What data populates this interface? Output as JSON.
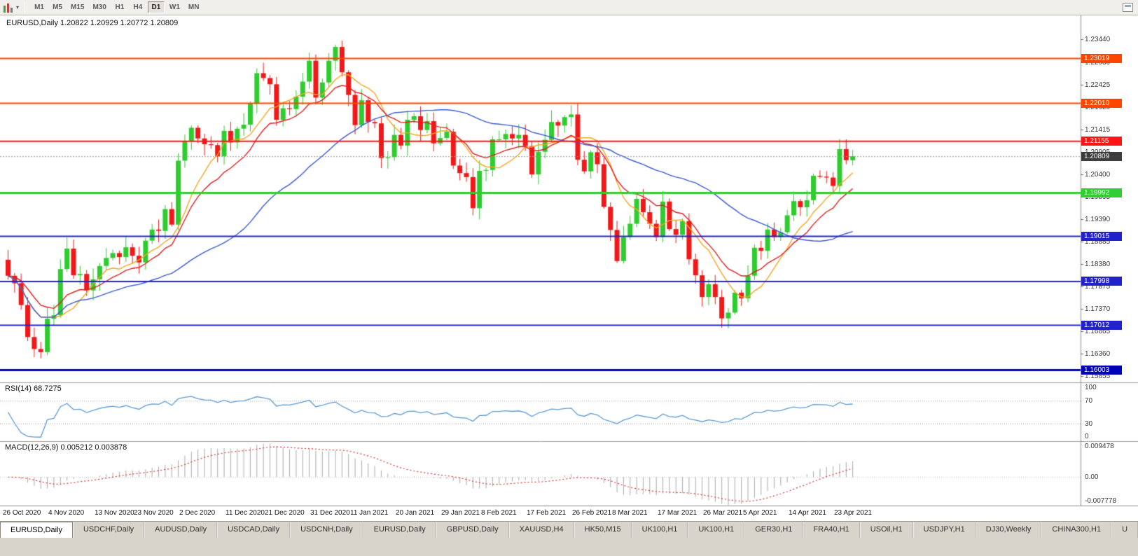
{
  "toolbar": {
    "timeframes": [
      "M1",
      "M5",
      "M15",
      "M30",
      "H1",
      "H4",
      "D1",
      "W1",
      "MN"
    ],
    "active_timeframe": "D1",
    "icons": [
      "candlestick-chart-icon",
      "chevron-down-icon",
      "restore-window-icon"
    ]
  },
  "tabs": {
    "active_index": 0,
    "items": [
      "EURUSD,Daily",
      "USDCHF,Daily",
      "AUDUSD,Daily",
      "USDCAD,Daily",
      "USDCNH,Daily",
      "EURUSD,Daily",
      "GBPUSD,Daily",
      "XAUUSD,H4",
      "HK50,M15",
      "UK100,H1",
      "UK100,H1",
      "GER30,H1",
      "FRA40,H1",
      "USOil,H1",
      "USDJPY,H1",
      "DJ30,Weekly",
      "CHINA300,H1",
      "U"
    ]
  },
  "chart_data": [
    {
      "type": "candlestick",
      "symbol": "EURUSD",
      "period": "Daily",
      "ohlc_line": "EURUSD,Daily 1.20822 1.20929 1.20772 1.20809",
      "current_ohlc": {
        "open": "1.20822",
        "high": "1.20929",
        "low": "1.20772",
        "close": "1.20809"
      },
      "up_color": "#2ecc2e",
      "down_color": "#f01818",
      "y_range": [
        1.1572,
        1.2398
      ],
      "first_open": 1.1848,
      "closes": [
        1.1812,
        1.1795,
        1.1746,
        1.1674,
        1.1647,
        1.164,
        1.1715,
        1.1723,
        1.1827,
        1.1873,
        1.1813,
        1.1816,
        1.1779,
        1.1804,
        1.1834,
        1.1852,
        1.1863,
        1.1854,
        1.1876,
        1.1857,
        1.1842,
        1.1891,
        1.1916,
        1.1913,
        1.1962,
        1.1927,
        1.2071,
        1.2115,
        1.2145,
        1.2121,
        1.2108,
        1.2106,
        1.2081,
        1.2138,
        1.2112,
        1.2143,
        1.2152,
        1.2199,
        1.2268,
        1.2257,
        1.2243,
        1.2163,
        1.2189,
        1.2187,
        1.2215,
        1.2249,
        1.2296,
        1.2213,
        1.2247,
        1.2296,
        1.2327,
        1.227,
        1.2219,
        1.2151,
        1.2207,
        1.2158,
        1.2155,
        1.2077,
        1.2079,
        1.2129,
        1.2105,
        1.2163,
        1.2171,
        1.214,
        1.216,
        1.211,
        1.2122,
        1.2136,
        1.206,
        1.2043,
        1.2034,
        1.1964,
        1.2048,
        1.205,
        1.2119,
        1.2119,
        1.2131,
        1.2121,
        1.2129,
        1.2104,
        1.204,
        1.2091,
        1.2118,
        1.2158,
        1.215,
        1.2169,
        1.2175,
        1.2073,
        1.2047,
        1.209,
        1.2063,
        1.1967,
        1.1915,
        1.1845,
        1.1899,
        1.1929,
        1.1985,
        1.1955,
        1.1929,
        1.1899,
        1.1979,
        1.1917,
        1.1904,
        1.1935,
        1.1849,
        1.1813,
        1.1764,
        1.1793,
        1.1764,
        1.1716,
        1.1729,
        1.1774,
        1.1761,
        1.1812,
        1.1875,
        1.1868,
        1.1916,
        1.1899,
        1.191,
        1.1948,
        1.198,
        1.1966,
        1.1982,
        1.2037,
        1.2035,
        1.2033,
        1.2014,
        1.2097,
        1.2072,
        1.20809
      ],
      "date_labels": [
        {
          "t": "26 Oct 2020",
          "i": 0
        },
        {
          "t": "4 Nov 2020",
          "i": 7
        },
        {
          "t": "13 Nov 2020",
          "i": 14
        },
        {
          "t": "23 Nov 2020",
          "i": 20
        },
        {
          "t": "2 Dec 2020",
          "i": 27
        },
        {
          "t": "11 Dec 2020",
          "i": 34
        },
        {
          "t": "21 Dec 2020",
          "i": 40
        },
        {
          "t": "31 Dec 2020",
          "i": 47
        },
        {
          "t": "11 Jan 2021",
          "i": 53
        },
        {
          "t": "20 Jan 2021",
          "i": 60
        },
        {
          "t": "29 Jan 2021",
          "i": 67
        },
        {
          "t": "8 Feb 2021",
          "i": 73
        },
        {
          "t": "17 Feb 2021",
          "i": 80
        },
        {
          "t": "26 Feb 2021",
          "i": 87
        },
        {
          "t": "8 Mar 2021",
          "i": 93
        },
        {
          "t": "17 Mar 2021",
          "i": 100
        },
        {
          "t": "26 Mar 2021",
          "i": 107
        },
        {
          "t": "5 Apr 2021",
          "i": 113
        },
        {
          "t": "14 Apr 2021",
          "i": 120
        },
        {
          "t": "23 Apr 2021",
          "i": 127
        }
      ],
      "axis_ticks": [
        "1.23440",
        "1.22930",
        "1.22425",
        "1.21920",
        "1.21415",
        "1.20905",
        "1.20400",
        "1.19895",
        "1.19390",
        "1.18885",
        "1.18380",
        "1.17875",
        "1.17370",
        "1.16865",
        "1.16360",
        "1.15855"
      ],
      "levels": [
        {
          "label": "1.23019",
          "value": 1.23019,
          "color": "#ff4500",
          "w": 2
        },
        {
          "label": "1.22010",
          "value": 1.2201,
          "color": "#ff4500",
          "w": 2
        },
        {
          "label": "1.21155",
          "value": 1.21155,
          "color": "#ff1414",
          "w": 2
        },
        {
          "label": "1.19992",
          "value": 1.19992,
          "color": "#32cd32",
          "w": 3
        },
        {
          "label": "1.19015",
          "value": 1.19015,
          "color": "#2222cc",
          "w": 2
        },
        {
          "label": "1.17998",
          "value": 1.17998,
          "color": "#2222cc",
          "w": 2
        },
        {
          "label": "1.17012",
          "value": 1.17012,
          "color": "#2222cc",
          "w": 2
        },
        {
          "label": "1.16003",
          "value": 1.16003,
          "color": "#0000b8",
          "w": 3
        }
      ],
      "current_price": {
        "label": "1.20809",
        "value": 1.20809,
        "color": "#3d3d3d"
      },
      "moving_averages": [
        {
          "name": "fast",
          "method": "sma",
          "period": 8,
          "color": "#f5a623"
        },
        {
          "name": "medium",
          "method": "ema",
          "period": 13,
          "color": "#e02020"
        },
        {
          "name": "slow",
          "method": "sma",
          "period": 34,
          "color": "#3b5bd5"
        }
      ]
    },
    {
      "type": "line",
      "name": "RSI",
      "label": "RSI(14) 68.7275",
      "period": 14,
      "current": "68.7275",
      "range": [
        0,
        100
      ],
      "ticks": [
        "100",
        "70",
        "30",
        "0"
      ],
      "dotted_levels": [
        70,
        30
      ],
      "color": "#5b9bd5"
    },
    {
      "type": "macd",
      "name": "MACD",
      "label": "MACD(12,26,9) 0.005212 0.003878",
      "params": [
        12,
        26,
        9
      ],
      "main_current": "0.005212",
      "signal_current": "0.003878",
      "range": [
        -0.007778,
        0.009478
      ],
      "ticks": [
        "0.009478",
        "0.00",
        "-0.007778"
      ],
      "histogram_color": "#a9a9a9",
      "signal_color": "#e03030"
    }
  ]
}
